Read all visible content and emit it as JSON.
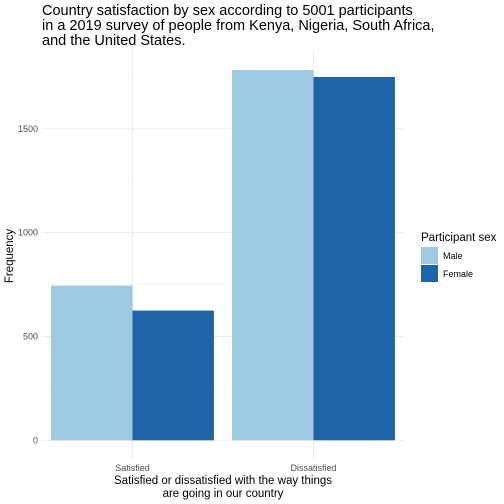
{
  "chart_data": {
    "type": "bar",
    "title_lines": [
      "Country satisfaction by sex according to 5001 participants",
      "in a 2019 survey of people from Kenya, Nigeria, South Africa,",
      "and the United States."
    ],
    "xlabel_lines": [
      "Satisfied or dissatisfied with the way things",
      "are going in our country"
    ],
    "ylabel": "Frequency",
    "categories": [
      "Satisfied",
      "Dissatisfied"
    ],
    "series": [
      {
        "name": "Male",
        "values": [
          745,
          1783
        ],
        "color": "#9ecae1"
      },
      {
        "name": "Female",
        "values": [
          625,
          1750
        ],
        "color": "#1f63a8"
      }
    ],
    "yticks": [
      0,
      500,
      1000,
      1500
    ],
    "ylim": [
      -95,
      1880
    ],
    "legend": {
      "title": "Participant sex",
      "position": "right"
    },
    "grid": true
  }
}
